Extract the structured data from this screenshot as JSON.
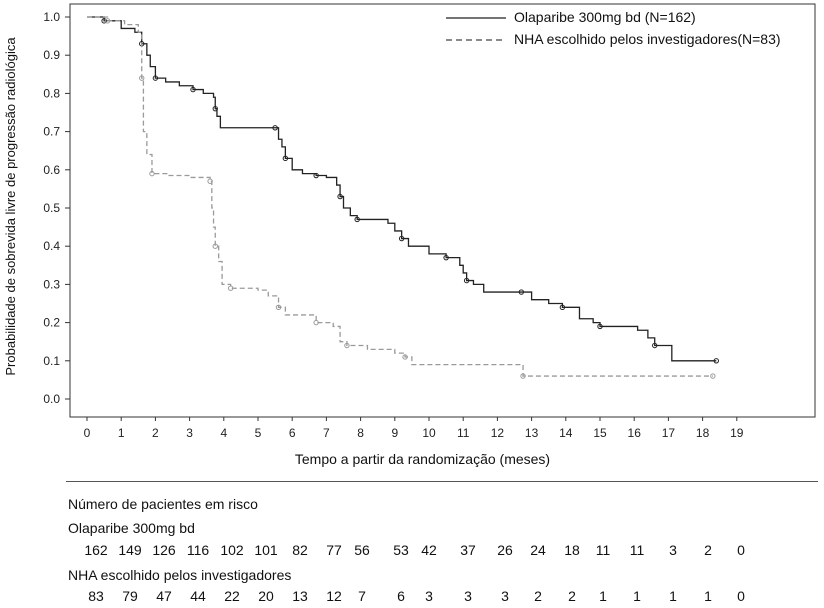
{
  "chart_data": {
    "type": "line",
    "ylabel": "Probabilidade de sobrevida livre de progressão radiológica",
    "xlabel": "Tempo a partir da randomização (meses)",
    "xlim": [
      0,
      19
    ],
    "ylim": [
      0,
      1.0
    ],
    "xticks": [
      "0",
      "1",
      "2",
      "3",
      "4",
      "5",
      "6",
      "7",
      "8",
      "9",
      "10",
      "11",
      "12",
      "13",
      "14",
      "15",
      "16",
      "17",
      "18",
      "19"
    ],
    "yticks": [
      "0.0",
      "0.1",
      "0.2",
      "0.3",
      "0.4",
      "0.5",
      "0.6",
      "0.7",
      "0.8",
      "0.9",
      "1.0"
    ],
    "legend_position": "top-right",
    "series": [
      {
        "name": "Olaparibe 300mg bd (N=162)",
        "color": "#222222",
        "style": "solid",
        "points": [
          [
            0,
            1.0
          ],
          [
            0.5,
            0.99
          ],
          [
            1.0,
            0.97
          ],
          [
            1.4,
            0.96
          ],
          [
            1.6,
            0.93
          ],
          [
            1.75,
            0.9
          ],
          [
            1.85,
            0.87
          ],
          [
            2.0,
            0.84
          ],
          [
            2.3,
            0.83
          ],
          [
            2.7,
            0.82
          ],
          [
            3.1,
            0.81
          ],
          [
            3.4,
            0.8
          ],
          [
            3.7,
            0.79
          ],
          [
            3.75,
            0.76
          ],
          [
            3.8,
            0.74
          ],
          [
            3.9,
            0.71
          ],
          [
            5.5,
            0.71
          ],
          [
            5.6,
            0.68
          ],
          [
            5.7,
            0.66
          ],
          [
            5.8,
            0.63
          ],
          [
            6.0,
            0.6
          ],
          [
            6.3,
            0.59
          ],
          [
            6.7,
            0.585
          ],
          [
            7.0,
            0.58
          ],
          [
            7.3,
            0.56
          ],
          [
            7.4,
            0.53
          ],
          [
            7.5,
            0.5
          ],
          [
            7.7,
            0.48
          ],
          [
            7.9,
            0.47
          ],
          [
            8.8,
            0.46
          ],
          [
            9.0,
            0.44
          ],
          [
            9.2,
            0.42
          ],
          [
            9.4,
            0.4
          ],
          [
            10.0,
            0.38
          ],
          [
            10.5,
            0.37
          ],
          [
            10.9,
            0.35
          ],
          [
            11.0,
            0.33
          ],
          [
            11.1,
            0.31
          ],
          [
            11.3,
            0.3
          ],
          [
            11.6,
            0.28
          ],
          [
            12.7,
            0.28
          ],
          [
            13.0,
            0.26
          ],
          [
            13.5,
            0.25
          ],
          [
            13.9,
            0.24
          ],
          [
            14.4,
            0.21
          ],
          [
            14.8,
            0.2
          ],
          [
            15.0,
            0.19
          ],
          [
            16.1,
            0.18
          ],
          [
            16.4,
            0.16
          ],
          [
            16.6,
            0.14
          ],
          [
            17.0,
            0.14
          ],
          [
            17.1,
            0.1
          ],
          [
            18.4,
            0.1
          ]
        ]
      },
      {
        "name": "NHA escolhido pelos investigadores(N=83)",
        "color": "#9a9a9a",
        "style": "dashed",
        "points": [
          [
            0,
            1.0
          ],
          [
            0.6,
            0.99
          ],
          [
            1.1,
            0.98
          ],
          [
            1.5,
            0.96
          ],
          [
            1.6,
            0.84
          ],
          [
            1.65,
            0.7
          ],
          [
            1.75,
            0.64
          ],
          [
            1.9,
            0.59
          ],
          [
            2.4,
            0.585
          ],
          [
            3.0,
            0.58
          ],
          [
            3.6,
            0.57
          ],
          [
            3.65,
            0.5
          ],
          [
            3.7,
            0.45
          ],
          [
            3.75,
            0.4
          ],
          [
            3.85,
            0.36
          ],
          [
            3.95,
            0.3
          ],
          [
            4.2,
            0.29
          ],
          [
            5.0,
            0.285
          ],
          [
            5.3,
            0.27
          ],
          [
            5.6,
            0.24
          ],
          [
            5.8,
            0.22
          ],
          [
            6.3,
            0.22
          ],
          [
            6.7,
            0.2
          ],
          [
            7.2,
            0.19
          ],
          [
            7.4,
            0.15
          ],
          [
            7.6,
            0.14
          ],
          [
            8.2,
            0.13
          ],
          [
            9.0,
            0.12
          ],
          [
            9.3,
            0.11
          ],
          [
            9.5,
            0.09
          ],
          [
            12.7,
            0.09
          ],
          [
            12.75,
            0.06
          ],
          [
            18.3,
            0.06
          ]
        ]
      }
    ]
  },
  "risk_table": {
    "title": "Número de pacientes em risco",
    "rows": [
      {
        "label": "Olaparibe 300mg bd",
        "values": [
          "162",
          "149",
          "126",
          "116",
          "102",
          "101",
          "82",
          "77",
          "56",
          "53",
          "42",
          "37",
          "26",
          "24",
          "18",
          "11",
          "11",
          "3",
          "2",
          "0"
        ]
      },
      {
        "label": "NHA escolhido pelos investigadores",
        "values": [
          "83",
          "79",
          "47",
          "44",
          "22",
          "20",
          "13",
          "12",
          "7",
          "6",
          "3",
          "3",
          "3",
          "2",
          "2",
          "1",
          "1",
          "1",
          "1",
          "0"
        ]
      }
    ]
  }
}
